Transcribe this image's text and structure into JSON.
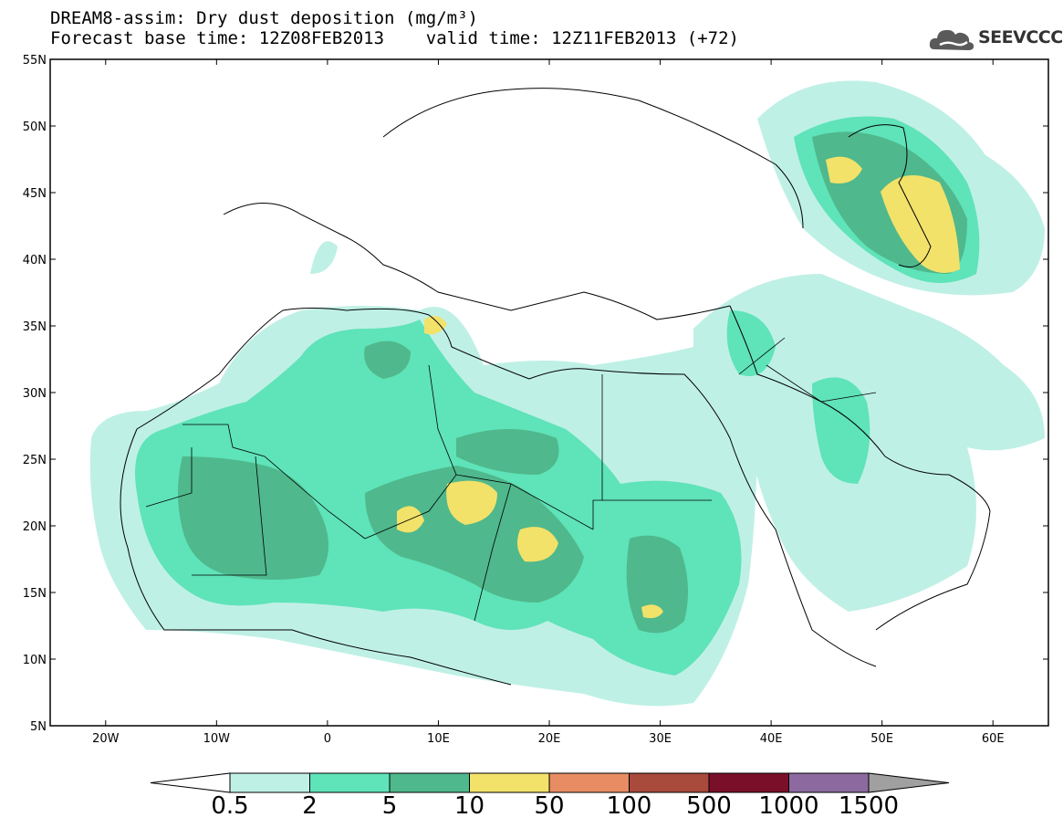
{
  "title": {
    "line1": "DREAM8-assim: Dry dust deposition (mg/m³)",
    "line2": "Forecast base time: 12Z08FEB2013    valid time: 12Z11FEB2013 (+72)"
  },
  "logo": {
    "text": "SEEVCCC",
    "icon": "cloud-logo-icon"
  },
  "map": {
    "lat_range": [
      5,
      55
    ],
    "lon_range": [
      -25,
      65
    ],
    "lat_labels": [
      "55N",
      "50N",
      "45N",
      "40N",
      "35N",
      "30N",
      "25N",
      "20N",
      "15N",
      "10N",
      "5N"
    ],
    "lon_labels": [
      "20W",
      "10W",
      "0",
      "10E",
      "20E",
      "30E",
      "40E",
      "50E",
      "60E"
    ]
  },
  "colorbar": {
    "labels": [
      "0.5",
      "2",
      "5",
      "10",
      "50",
      "100",
      "500",
      "1000",
      "1500"
    ],
    "colors": [
      "#bff0e6",
      "#5fe3b8",
      "#4fb88c",
      "#f2e26a",
      "#e88c64",
      "#a84a3c",
      "#7a0f2a",
      "#8c6aa0",
      "#a0a0a0"
    ],
    "under_color": "#ffffff"
  }
}
